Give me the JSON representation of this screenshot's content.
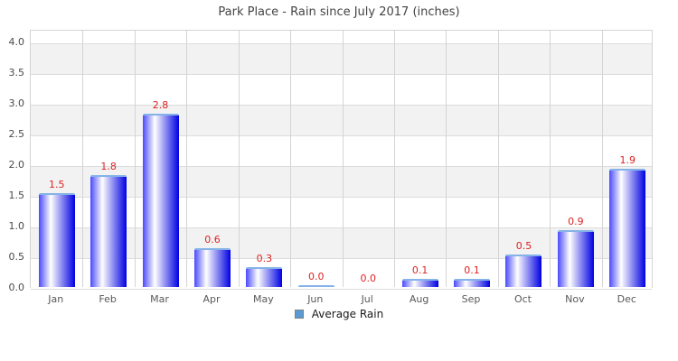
{
  "title": "Park Place - Rain since July 2017 (inches)",
  "legend": {
    "label": "Average Rain",
    "marker_color": "#5b9bd5",
    "marker_border_color": "#808080"
  },
  "chart_data": {
    "type": "bar",
    "title": "Park Place - Rain since July 2017 (inches)",
    "categories": [
      "Jan",
      "Feb",
      "Mar",
      "Apr",
      "May",
      "Jun",
      "Jul",
      "Aug",
      "Sep",
      "Oct",
      "Nov",
      "Dec"
    ],
    "series": [
      {
        "name": "Average Rain",
        "values": [
          1.5,
          1.8,
          2.8,
          0.6,
          0.3,
          0.0,
          0.0,
          0.1,
          0.1,
          0.5,
          0.9,
          1.9
        ]
      }
    ],
    "value_labels": [
      "1.5",
      "1.8",
      "2.8",
      "0.6",
      "0.3",
      "0.0",
      "0.0",
      "0.1",
      "0.1",
      "0.5",
      "0.9",
      "1.9"
    ],
    "zero_value_cap_shown_for": [
      "Jun"
    ],
    "xlabel": "",
    "ylabel": "",
    "ylim": [
      0,
      4.0
    ],
    "ytick_step": 0.5,
    "ytick_labels": [
      "0.0",
      "0.5",
      "1.0",
      "1.5",
      "2.0",
      "2.5",
      "3.0",
      "3.5",
      "4.0"
    ],
    "grid": true,
    "legend_position": "bottom",
    "value_label_color": "#dd2222",
    "band_colors": [
      "#f2f2f2",
      "#ffffff"
    ],
    "bar_gradient": [
      "#4a4aff",
      "#ffffff",
      "#0000e2"
    ],
    "bar_cap_color": "#85b2e8"
  }
}
